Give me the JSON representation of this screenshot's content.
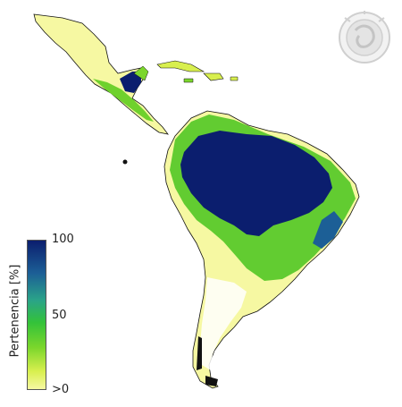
{
  "legend": {
    "title": "Pertenencia [%]",
    "ticks": [
      "100",
      "50",
      ">0"
    ],
    "colors": [
      "#0b1e6e",
      "#1c5f96",
      "#2aa389",
      "#33c23a",
      "#7bd62c",
      "#d8ef4e",
      "#f6f8a2"
    ]
  },
  "logo": {
    "icon": "institutional-seal-icon"
  },
  "map": {
    "region": "Latin America"
  }
}
